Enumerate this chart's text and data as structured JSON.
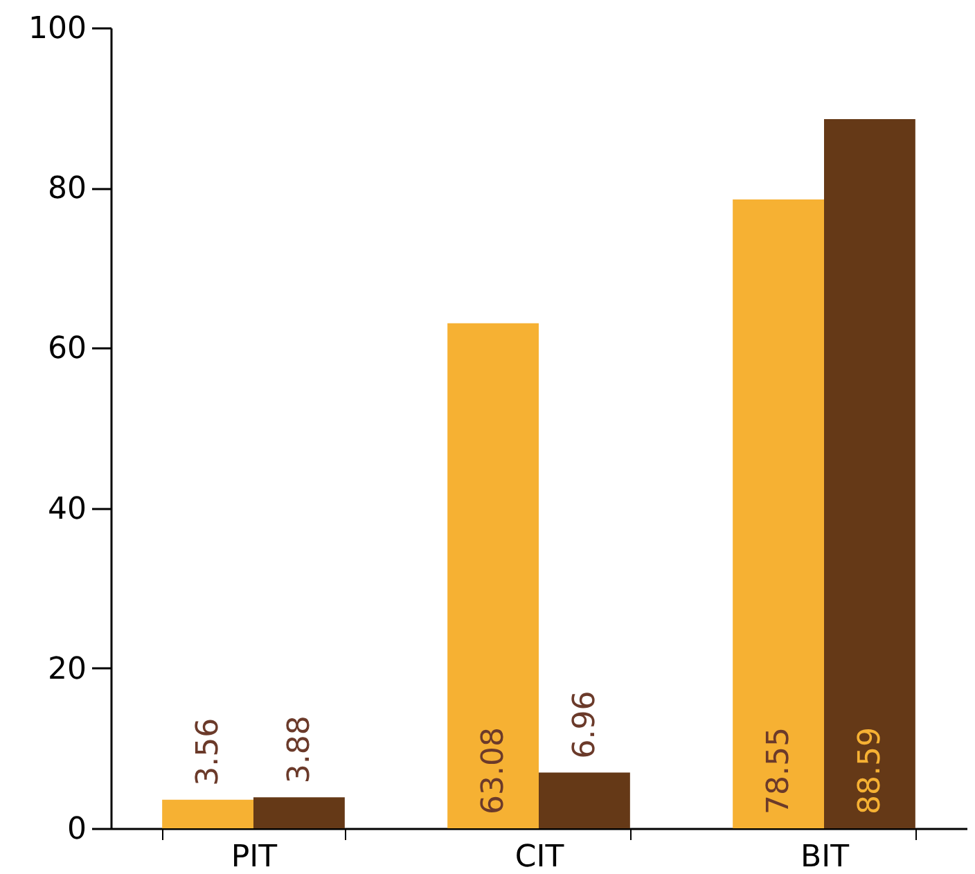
{
  "chart_data": {
    "type": "bar",
    "categories": [
      "PIT",
      "CIT",
      "BIT"
    ],
    "series": [
      {
        "color": "#f6b133",
        "values": [
          3.56,
          63.08,
          78.55
        ]
      },
      {
        "color": "#653917",
        "values": [
          3.88,
          6.96,
          88.59
        ]
      }
    ],
    "ylim": [
      0,
      100
    ],
    "yticks": [
      0,
      20,
      40,
      60,
      80,
      100
    ],
    "data_labels": true,
    "grid": false
  }
}
